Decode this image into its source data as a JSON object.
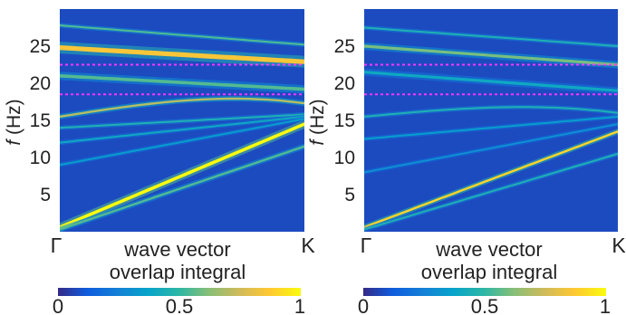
{
  "chart_data": [
    {
      "type": "heatmap",
      "panel": "left",
      "xlabel": "wave vector",
      "ylabel_italic": "f",
      "ylabel_rest": " (Hz)",
      "x_tick_labels": [
        "Γ",
        "K"
      ],
      "y_ticks": [
        5,
        10,
        15,
        20,
        25
      ],
      "ylim": [
        0,
        30
      ],
      "reference_lines": [
        18.5,
        22.5
      ],
      "reference_line_color": "#ff33ff",
      "colorbar": {
        "label": "overlap integral",
        "ticks": [
          "0",
          "0.5",
          "1"
        ],
        "range": [
          0,
          1
        ]
      },
      "bands": [
        {
          "start": 24.8,
          "end": 22.9,
          "intensity": 0.85,
          "width": 1.3
        },
        {
          "start": 27.8,
          "end": 25.2,
          "intensity": 0.55,
          "width": 0.5
        },
        {
          "start": 21.0,
          "end": 19.2,
          "intensity": 0.55,
          "width": 0.9
        },
        {
          "start": 15.5,
          "end": 18.8,
          "intensity": 0.7,
          "width": 0.6,
          "curve": "arch"
        },
        {
          "start": 0.6,
          "end": 14.5,
          "intensity": 1.0,
          "width": 0.9
        },
        {
          "start": 0.3,
          "end": 11.5,
          "intensity": 0.55,
          "width": 0.6
        },
        {
          "start": 14.0,
          "end": 15.8,
          "intensity": 0.45,
          "width": 0.5
        },
        {
          "start": 12.0,
          "end": 15.5,
          "intensity": 0.4,
          "width": 0.5
        },
        {
          "start": 9.0,
          "end": 15.2,
          "intensity": 0.35,
          "width": 0.5
        }
      ]
    },
    {
      "type": "heatmap",
      "panel": "right",
      "xlabel": "wave vector",
      "ylabel_italic": "f",
      "ylabel_rest": " (Hz)",
      "x_tick_labels": [
        "Γ",
        "K"
      ],
      "y_ticks": [
        5,
        10,
        15,
        20,
        25
      ],
      "ylim": [
        0,
        30
      ],
      "reference_lines": [
        18.5,
        22.5
      ],
      "reference_line_color": "#ff33ff",
      "colorbar": {
        "label": "overlap integral",
        "ticks": [
          "0",
          "0.5",
          "1"
        ],
        "range": [
          0,
          1
        ]
      },
      "bands": [
        {
          "start": 25.0,
          "end": 22.5,
          "intensity": 0.6,
          "width": 0.8
        },
        {
          "start": 27.5,
          "end": 25.0,
          "intensity": 0.45,
          "width": 0.5
        },
        {
          "start": 21.5,
          "end": 19.0,
          "intensity": 0.4,
          "width": 0.8
        },
        {
          "start": 15.5,
          "end": 17.5,
          "intensity": 0.45,
          "width": 0.5,
          "curve": "arch"
        },
        {
          "start": 0.6,
          "end": 13.5,
          "intensity": 0.9,
          "width": 0.6
        },
        {
          "start": 0.3,
          "end": 10.5,
          "intensity": 0.45,
          "width": 0.5
        },
        {
          "start": 12.5,
          "end": 15.5,
          "intensity": 0.35,
          "width": 0.5
        },
        {
          "start": 8.0,
          "end": 14.5,
          "intensity": 0.3,
          "width": 0.5
        }
      ]
    }
  ]
}
